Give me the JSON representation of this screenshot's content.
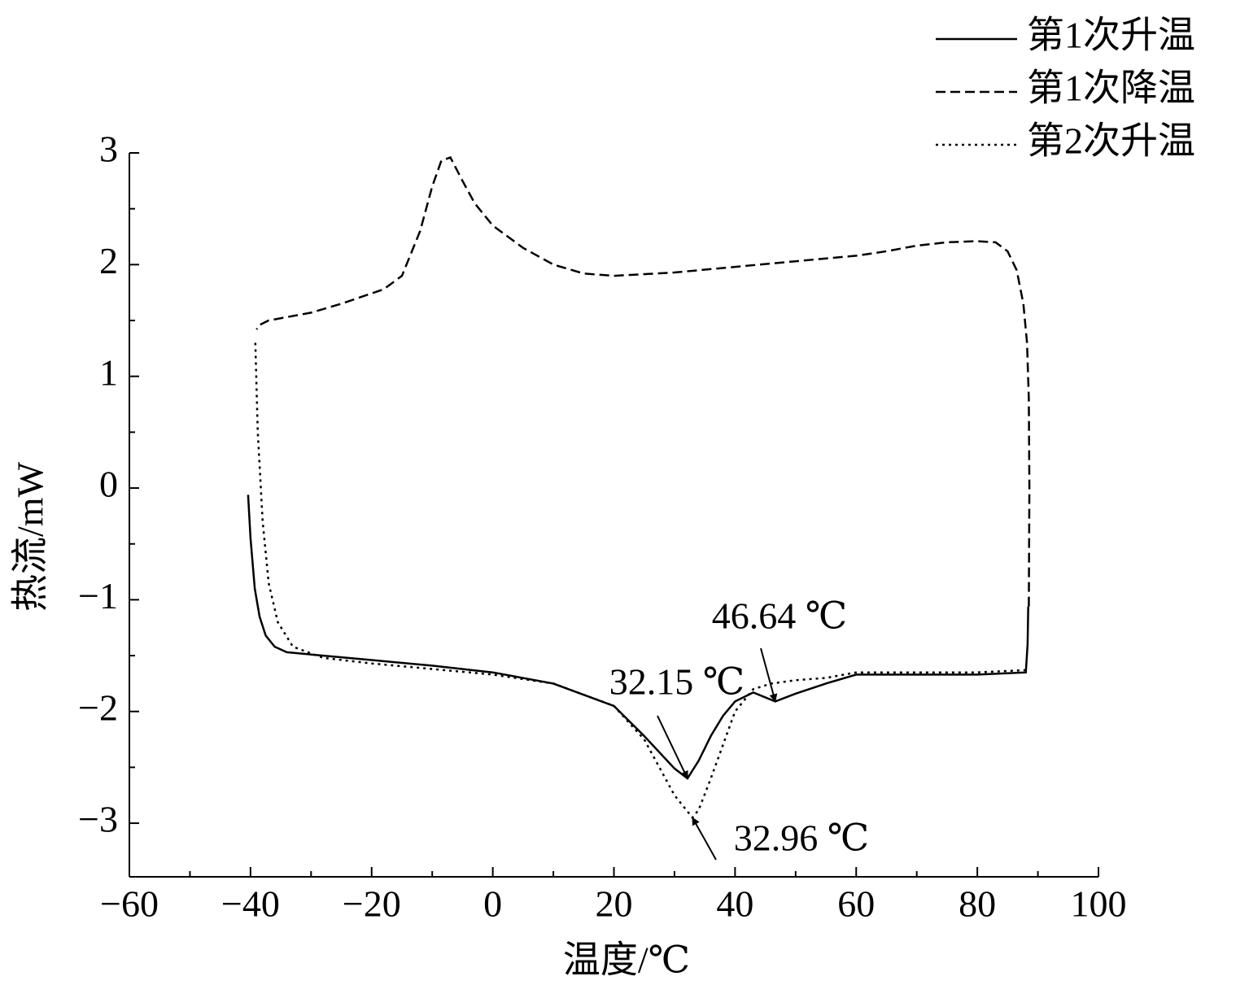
{
  "chart_data": {
    "type": "line",
    "xlabel": "温度/℃",
    "ylabel": "热流/mW",
    "xlim": [
      -60,
      100
    ],
    "ylim": [
      -3.48,
      3
    ],
    "xticks": [
      {
        "value": -60,
        "label": "−60"
      },
      {
        "value": -40,
        "label": "−40"
      },
      {
        "value": -20,
        "label": "−20"
      },
      0,
      20,
      40,
      60,
      80,
      100
    ],
    "yticks": [
      {
        "value": -3,
        "label": "−3"
      },
      {
        "value": -2,
        "label": "−2"
      },
      {
        "value": -1,
        "label": "−1"
      },
      0,
      1,
      2,
      3
    ],
    "x_minor_ticks": [
      -50,
      -30,
      -10,
      10,
      30,
      50,
      70,
      90
    ],
    "y_minor_ticks": [
      -2.5,
      -1.5,
      -0.5,
      0.5,
      1.5,
      2.5
    ],
    "legend": "top-right",
    "series": [
      {
        "name": "第1次升温",
        "color": "#000000",
        "style": "solid",
        "x": [
          -40.4,
          -40,
          -39.3,
          -38.5,
          -37.5,
          -36,
          -34,
          -30,
          -20,
          -10,
          0,
          10,
          20,
          25,
          30,
          32.15,
          34,
          36,
          38,
          40,
          43,
          46.64,
          50,
          55,
          60,
          70,
          80,
          88,
          88.3,
          88.4
        ],
        "values": [
          -0.06,
          -0.45,
          -0.9,
          -1.15,
          -1.32,
          -1.42,
          -1.47,
          -1.49,
          -1.54,
          -1.59,
          -1.65,
          -1.75,
          -1.95,
          -2.22,
          -2.51,
          -2.6,
          -2.44,
          -2.22,
          -2.04,
          -1.91,
          -1.83,
          -1.91,
          -1.84,
          -1.75,
          -1.67,
          -1.67,
          -1.67,
          -1.65,
          -1.4,
          -1.06
        ]
      },
      {
        "name": "第1次降温",
        "color": "#000000",
        "style": "dashed",
        "x": [
          88.5,
          88.6,
          88.5,
          88.2,
          87.6,
          86.5,
          85,
          83,
          80,
          75,
          70,
          65,
          60,
          50,
          40,
          30,
          20,
          15,
          10,
          5,
          0,
          -3,
          -5,
          -7,
          -8.5,
          -10,
          -12,
          -15,
          -18,
          -25,
          -30,
          -37,
          -38.5,
          -39
        ],
        "values": [
          -1.06,
          0,
          0.8,
          1.3,
          1.65,
          1.95,
          2.12,
          2.2,
          2.21,
          2.2,
          2.17,
          2.12,
          2.08,
          2.03,
          1.98,
          1.93,
          1.9,
          1.92,
          2.0,
          2.15,
          2.35,
          2.55,
          2.75,
          2.96,
          2.93,
          2.7,
          2.3,
          1.9,
          1.78,
          1.65,
          1.57,
          1.5,
          1.46,
          1.42
        ]
      },
      {
        "name": "第2次升温",
        "color": "#000000",
        "style": "dotted",
        "x": [
          -39.2,
          -38.8,
          -38,
          -37,
          -35.5,
          -33,
          -28,
          -20,
          -10,
          0,
          10,
          20,
          25,
          28,
          30,
          32.96,
          34,
          36,
          38,
          40,
          43,
          46,
          50,
          55,
          60,
          70,
          80,
          88
        ],
        "values": [
          1.3,
          0.5,
          -0.3,
          -0.85,
          -1.2,
          -1.42,
          -1.52,
          -1.57,
          -1.62,
          -1.67,
          -1.75,
          -1.95,
          -2.25,
          -2.55,
          -2.75,
          -2.95,
          -2.88,
          -2.6,
          -2.3,
          -2.0,
          -1.8,
          -1.75,
          -1.72,
          -1.7,
          -1.65,
          -1.65,
          -1.65,
          -1.63
        ]
      }
    ],
    "annotations": [
      {
        "text": "46.64 ℃",
        "x": 46.64,
        "y": -1.91
      },
      {
        "text": "32.15 ℃",
        "x": 32.15,
        "y": -2.6
      },
      {
        "text": "32.96 ℃",
        "x": 32.96,
        "y": -2.95
      }
    ]
  }
}
